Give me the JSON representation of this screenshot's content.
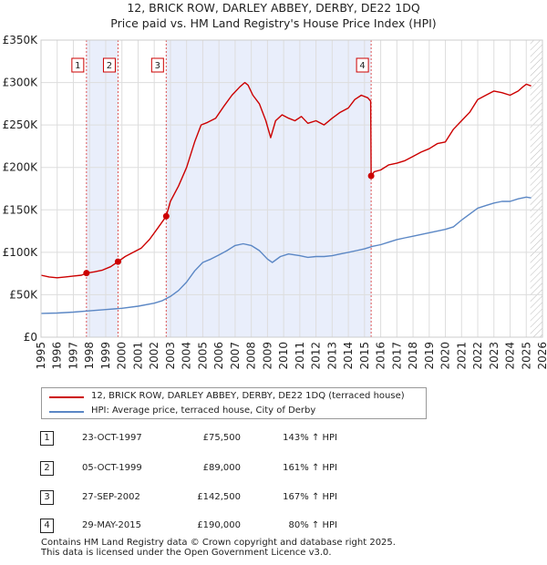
{
  "chart_data": {
    "type": "line",
    "title": "12, BRICK ROW, DARLEY ABBEY, DERBY, DE22 1DQ",
    "subtitle": "Price paid vs. HM Land Registry's House Price Index (HPI)",
    "xlabel": "",
    "ylabel": "",
    "xlim": [
      1995,
      2026
    ],
    "ylim": [
      0,
      350000
    ],
    "x_ticks": [
      1995,
      1996,
      1997,
      1998,
      1999,
      2000,
      2001,
      2002,
      2003,
      2004,
      2005,
      2006,
      2007,
      2008,
      2009,
      2010,
      2011,
      2012,
      2013,
      2014,
      2015,
      2016,
      2017,
      2018,
      2019,
      2020,
      2021,
      2022,
      2023,
      2024,
      2025,
      2026
    ],
    "y_ticks": [
      {
        "value": 0,
        "label": "£0"
      },
      {
        "value": 50000,
        "label": "£50K"
      },
      {
        "value": 100000,
        "label": "£100K"
      },
      {
        "value": 150000,
        "label": "£150K"
      },
      {
        "value": 200000,
        "label": "£200K"
      },
      {
        "value": 250000,
        "label": "£250K"
      },
      {
        "value": 300000,
        "label": "£300K"
      },
      {
        "value": 350000,
        "label": "£350K"
      }
    ],
    "grid": true,
    "shaded_periods": [
      [
        1997.81,
        1999.76
      ],
      [
        2002.74,
        2015.41
      ]
    ],
    "hatched_region": {
      "from": 2025.25,
      "to": 2026
    },
    "series": [
      {
        "name": "12, BRICK ROW, DARLEY ABBEY, DERBY, DE22 1DQ (terraced house)",
        "color": "#cc0000",
        "x": [
          1995.0,
          1995.5,
          1996.0,
          1996.5,
          1997.0,
          1997.5,
          1997.81,
          1998.3,
          1998.8,
          1999.3,
          1999.76,
          2000.2,
          2000.7,
          2001.2,
          2001.7,
          2002.2,
          2002.74,
          2003.0,
          2003.5,
          2004.0,
          2004.5,
          2004.9,
          2005.3,
          2005.8,
          2006.3,
          2006.8,
          2007.3,
          2007.6,
          2007.8,
          2008.1,
          2008.5,
          2008.9,
          2009.2,
          2009.5,
          2009.9,
          2010.3,
          2010.7,
          2011.1,
          2011.5,
          2012.0,
          2012.5,
          2013.0,
          2013.5,
          2014.0,
          2014.4,
          2014.8,
          2015.2,
          2015.38,
          2015.41,
          2015.6,
          2016.0,
          2016.5,
          2017.0,
          2017.5,
          2018.0,
          2018.5,
          2019.0,
          2019.5,
          2020.0,
          2020.5,
          2021.0,
          2021.5,
          2022.0,
          2022.5,
          2023.0,
          2023.5,
          2024.0,
          2024.5,
          2024.8,
          2025.0,
          2025.3
        ],
        "values": [
          73000,
          71000,
          70000,
          71000,
          72000,
          73000,
          75500,
          77000,
          79000,
          83000,
          89000,
          95000,
          100000,
          105000,
          115000,
          128000,
          142500,
          160000,
          178000,
          200000,
          230000,
          250000,
          253000,
          258000,
          272000,
          285000,
          295000,
          300000,
          297000,
          285000,
          275000,
          255000,
          235000,
          255000,
          262000,
          258000,
          255000,
          260000,
          252000,
          255000,
          250000,
          258000,
          265000,
          270000,
          280000,
          285000,
          282000,
          278000,
          190000,
          195000,
          197000,
          203000,
          205000,
          208000,
          213000,
          218000,
          222000,
          228000,
          230000,
          245000,
          255000,
          265000,
          280000,
          285000,
          290000,
          288000,
          285000,
          290000,
          295000,
          298000,
          296000
        ]
      },
      {
        "name": "HPI: Average price, terraced house, City of Derby",
        "color": "#5b87c5",
        "x": [
          1995.0,
          1996.0,
          1997.0,
          1998.0,
          1999.0,
          2000.0,
          2001.0,
          2002.0,
          2002.5,
          2003.0,
          2003.5,
          2004.0,
          2004.5,
          2005.0,
          2005.5,
          2006.0,
          2006.5,
          2007.0,
          2007.5,
          2008.0,
          2008.5,
          2009.0,
          2009.3,
          2009.8,
          2010.3,
          2011.0,
          2011.5,
          2012.0,
          2012.5,
          2013.0,
          2013.5,
          2014.0,
          2014.5,
          2015.0,
          2015.5,
          2016.0,
          2016.5,
          2017.0,
          2017.5,
          2018.0,
          2018.5,
          2019.0,
          2019.5,
          2020.0,
          2020.5,
          2021.0,
          2021.5,
          2022.0,
          2022.5,
          2023.0,
          2023.5,
          2024.0,
          2024.5,
          2025.0,
          2025.3
        ],
        "values": [
          28000,
          28500,
          29500,
          31000,
          32500,
          34000,
          36500,
          40000,
          43000,
          48000,
          55000,
          65000,
          78000,
          88000,
          92000,
          97000,
          102000,
          108000,
          110000,
          108000,
          102000,
          92000,
          88000,
          95000,
          98000,
          96000,
          94000,
          95000,
          95000,
          96000,
          98000,
          100000,
          102000,
          104000,
          107000,
          109000,
          112000,
          115000,
          117000,
          119000,
          121000,
          123000,
          125000,
          127000,
          130000,
          138000,
          145000,
          152000,
          155000,
          158000,
          160000,
          160000,
          163000,
          165000,
          164000
        ]
      }
    ],
    "sale_markers": [
      {
        "label": "1",
        "x": 1997.81,
        "value": 75500
      },
      {
        "label": "2",
        "x": 1999.76,
        "value": 89000
      },
      {
        "label": "3",
        "x": 2002.74,
        "value": 142500
      },
      {
        "label": "4",
        "x": 2015.41,
        "value": 190000
      }
    ]
  },
  "legend": {
    "items": [
      {
        "label": "12, BRICK ROW, DARLEY ABBEY, DERBY, DE22 1DQ (terraced house)",
        "color": "#cc0000"
      },
      {
        "label": "HPI: Average price, terraced house, City of Derby",
        "color": "#5b87c5"
      }
    ]
  },
  "sales": [
    {
      "num": "1",
      "date": "23-OCT-1997",
      "price": "£75,500",
      "hpi": "143% ↑ HPI"
    },
    {
      "num": "2",
      "date": "05-OCT-1999",
      "price": "£89,000",
      "hpi": "161% ↑ HPI"
    },
    {
      "num": "3",
      "date": "27-SEP-2002",
      "price": "£142,500",
      "hpi": "167% ↑ HPI"
    },
    {
      "num": "4",
      "date": "29-MAY-2015",
      "price": "£190,000",
      "hpi": "80% ↑ HPI"
    }
  ],
  "footer": {
    "line1": "Contains HM Land Registry data © Crown copyright and database right 2025.",
    "line2": "This data is licensed under the Open Government Licence v3.0."
  }
}
